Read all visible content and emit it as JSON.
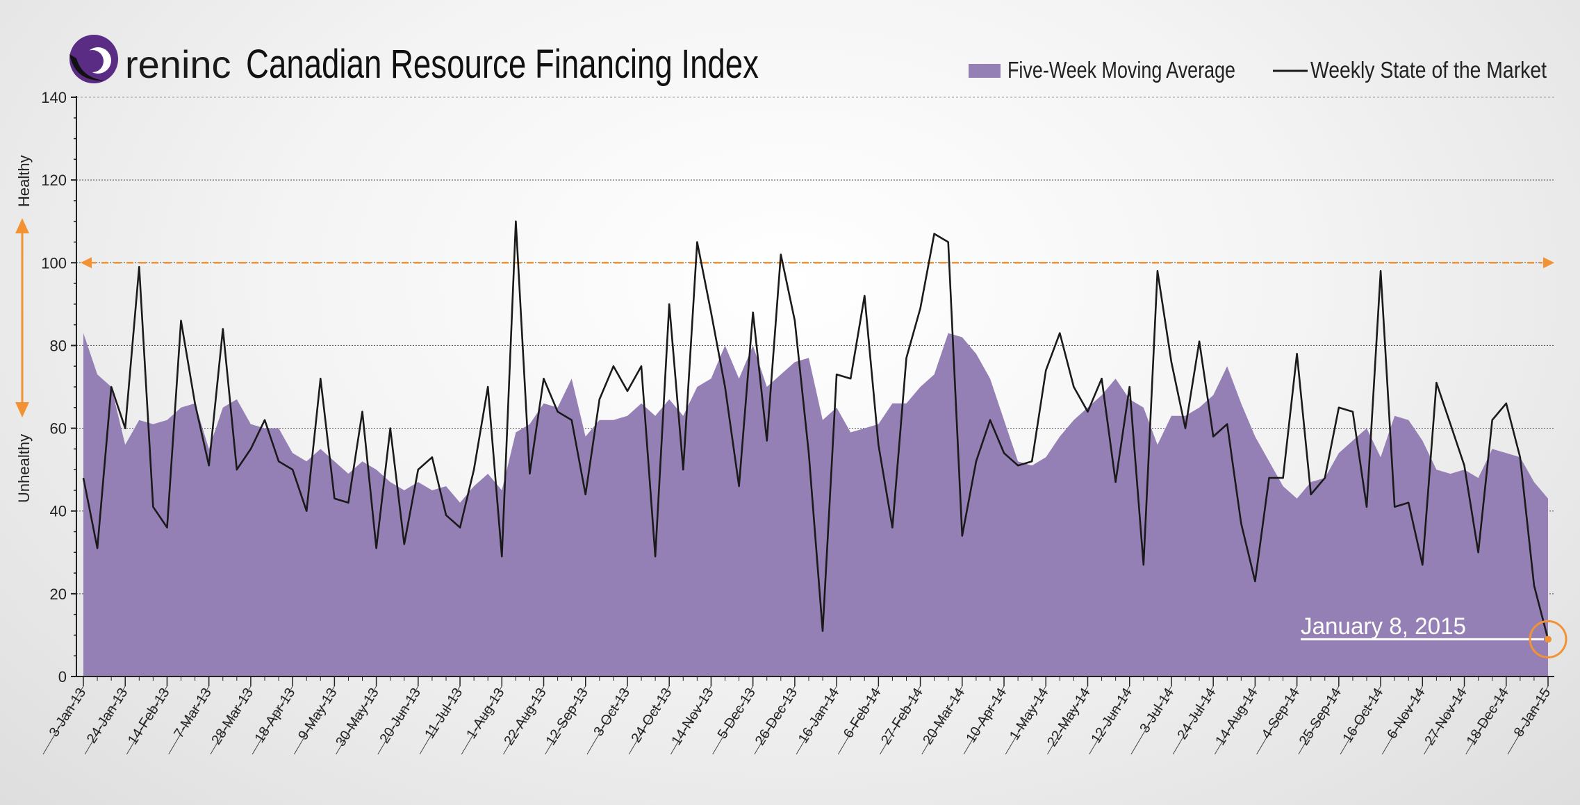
{
  "logo": {
    "brand": "Oreninc"
  },
  "chart_data": {
    "type": "area",
    "title": "Canadian Resource Financing Index",
    "legend": [
      "Five-Week Moving Average",
      "Weekly State of the Market"
    ],
    "legend_position": "top-right",
    "ylim": [
      0,
      140
    ],
    "yticks": [
      0,
      20,
      40,
      60,
      80,
      100,
      120,
      140
    ],
    "y_markers": {
      "healthy": "Healthy",
      "unhealthy": "Unhealthy"
    },
    "threshold": 100,
    "grid": true,
    "annotation": "January 8, 2015",
    "x_tick_labels": [
      "3-Jan-13",
      "24-Jan-13",
      "14-Feb-13",
      "7-Mar-13",
      "28-Mar-13",
      "18-Apr-13",
      "9-May-13",
      "30-May-13",
      "20-Jun-13",
      "11-Jul-13",
      "1-Aug-13",
      "22-Aug-13",
      "12-Sep-13",
      "3-Oct-13",
      "24-Oct-13",
      "14-Nov-13",
      "5-Dec-13",
      "26-Dec-13",
      "16-Jan-14",
      "6-Feb-14",
      "27-Feb-14",
      "20-Mar-14",
      "10-Apr-14",
      "1-May-14",
      "22-May-14",
      "12-Jun-14",
      "3-Jul-14",
      "24-Jul-14",
      "14-Aug-14",
      "4-Sep-14",
      "25-Sep-14",
      "16-Oct-14",
      "6-Nov-14",
      "27-Nov-14",
      "18-Dec-14",
      "8-Jan-15"
    ],
    "series": [
      {
        "name": "Five-Week Moving Average",
        "style": "area",
        "color": "#9580b5",
        "values": [
          83,
          73,
          70,
          56,
          62,
          61,
          62,
          65,
          66,
          55,
          65,
          67,
          61,
          60,
          60,
          54,
          52,
          55,
          52,
          49,
          52,
          50,
          47,
          45,
          47,
          45,
          46,
          42,
          46,
          49,
          45,
          59,
          61,
          66,
          65,
          72,
          58,
          62,
          62,
          63,
          66,
          63,
          67,
          63,
          70,
          72,
          80,
          72,
          80,
          70,
          73,
          76,
          77,
          62,
          65,
          59,
          60,
          61,
          66,
          66,
          70,
          73,
          83,
          82,
          78,
          72,
          62,
          52,
          51,
          53,
          58,
          62,
          65,
          68,
          72,
          67,
          65,
          56,
          63,
          63,
          65,
          68,
          75,
          66,
          58,
          52,
          46,
          43,
          47,
          48,
          54,
          57,
          60,
          53,
          63,
          62,
          57,
          50,
          49,
          50,
          48,
          55,
          54,
          53,
          47,
          43
        ]
      },
      {
        "name": "Weekly State of the Market",
        "style": "line",
        "color": "#1a1a1a",
        "values": [
          48,
          31,
          70,
          60,
          99,
          41,
          36,
          86,
          66,
          51,
          84,
          50,
          55,
          62,
          52,
          50,
          40,
          72,
          43,
          42,
          64,
          31,
          60,
          32,
          50,
          53,
          39,
          36,
          50,
          70,
          29,
          110,
          49,
          72,
          64,
          62,
          44,
          67,
          75,
          69,
          75,
          29,
          90,
          50,
          105,
          88,
          70,
          46,
          88,
          57,
          102,
          86,
          54,
          11,
          73,
          72,
          92,
          56,
          36,
          77,
          89,
          107,
          105,
          34,
          52,
          62,
          54,
          51,
          52,
          74,
          83,
          70,
          64,
          72,
          47,
          70,
          27,
          98,
          76,
          60,
          81,
          58,
          61,
          37,
          23,
          48,
          48,
          78,
          44,
          48,
          65,
          64,
          41,
          98,
          41,
          42,
          27,
          71,
          61,
          51,
          30,
          62,
          66,
          53,
          22,
          9
        ]
      }
    ]
  }
}
